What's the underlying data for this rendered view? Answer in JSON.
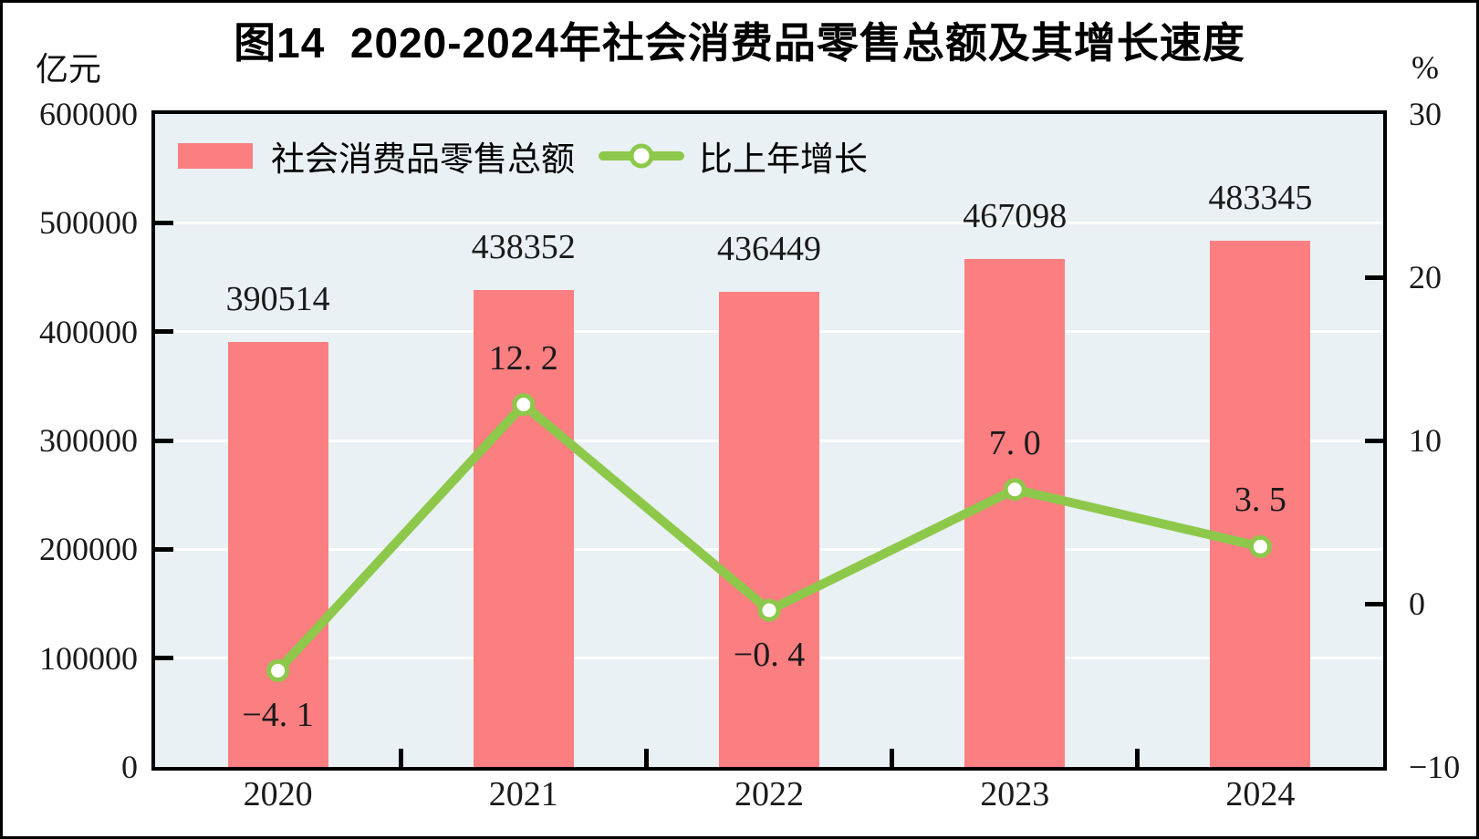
{
  "title": "图14  2020-2024年社会消费品零售总额及其增长速度",
  "left_axis": {
    "unit": "亿元",
    "min": 0,
    "max": 600000,
    "tick_values": [
      600000,
      500000,
      400000,
      300000,
      200000,
      100000,
      0
    ],
    "tick_labels": [
      "600000",
      "500000",
      "400000",
      "300000",
      "200000",
      "100000",
      "0"
    ]
  },
  "right_axis": {
    "unit": "%",
    "min": -10,
    "max": 30,
    "tick_values": [
      30,
      20,
      10,
      0,
      -10
    ],
    "tick_labels": [
      "30",
      "20",
      "10",
      "0",
      "−10"
    ]
  },
  "legend": {
    "bar_label": "社会消费品零售总额",
    "line_label": "比上年增长"
  },
  "colors": {
    "bar": "#fb7e80",
    "line": "#8dc84b",
    "marker_fill": "#ffffff",
    "plot_background": "#e9f1f4",
    "gridline": "#ffffff",
    "axis": "#000000"
  },
  "chart_data": {
    "type": "bar+line",
    "categories": [
      "2020",
      "2021",
      "2022",
      "2023",
      "2024"
    ],
    "series": [
      {
        "name": "社会消费品零售总额",
        "type": "bar",
        "axis": "left",
        "unit": "亿元",
        "color": "#fb7e80",
        "values": [
          390514,
          438352,
          436449,
          467098,
          483345
        ],
        "value_labels": [
          "390514",
          "438352",
          "436449",
          "467098",
          "483345"
        ]
      },
      {
        "name": "比上年增长",
        "type": "line",
        "axis": "right",
        "unit": "%",
        "color": "#8dc84b",
        "marker": "circle-white-fill-green-ring",
        "values": [
          -4.1,
          12.2,
          -0.4,
          7.0,
          3.5
        ],
        "value_labels": [
          "−4. 1",
          "12. 2",
          "−0. 4",
          "7. 0",
          "3. 5"
        ],
        "label_position": [
          "below",
          "above",
          "below",
          "above",
          "above"
        ]
      }
    ],
    "left_ylim": [
      0,
      600000
    ],
    "right_ylim": [
      -10,
      30
    ],
    "gridline_interval_left_axis": 100000,
    "grid": "horizontal-white",
    "legend_position": "top-left-inside",
    "plot_bg": "#e9f1f4"
  }
}
